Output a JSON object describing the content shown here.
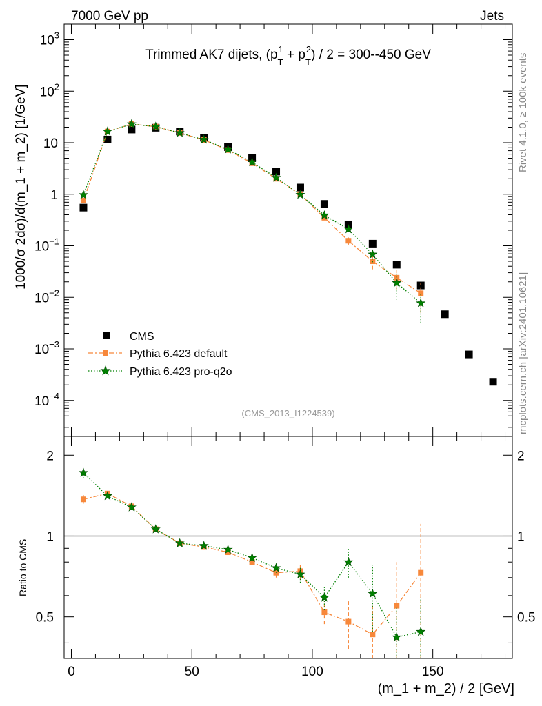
{
  "header": {
    "left": "7000 GeV pp",
    "right": "Jets"
  },
  "side_labels": {
    "rivet": "Rivet 4.1.0, ≥ 100k events",
    "mcplots": "mcplots.cern.ch [arXiv:2401.10621]"
  },
  "chart_data": [
    {
      "type": "scatter",
      "panel": "main",
      "title_parts": {
        "prefix": "Trimmed AK7 dijets, (p",
        "sub1": "T",
        "sup1": "1",
        "mid": " + p",
        "sub2": "T",
        "sup2": "2",
        "suffix": ") / 2 = 300--450 GeV"
      },
      "ylabel": "1000/σ  2dσ)/d(m_1 + m_2) [1/GeV]",
      "yscale": "log",
      "ylim": [
        2e-05,
        2000
      ],
      "xlim": [
        -3,
        183
      ],
      "y_tick_labels": [
        {
          "base": "10",
          "exp": "3",
          "value": 1000
        },
        {
          "base": "10",
          "exp": "2",
          "value": 100
        },
        {
          "base": "10",
          "exp": "",
          "value": 10
        },
        {
          "base": "1",
          "exp": "",
          "value": 1
        },
        {
          "base": "10",
          "exp": "−1",
          "value": 0.1
        },
        {
          "base": "10",
          "exp": "−2",
          "value": 0.01
        },
        {
          "base": "10",
          "exp": "−3",
          "value": 0.001
        },
        {
          "base": "10",
          "exp": "−4",
          "value": 0.0001
        }
      ],
      "watermark": "(CMS_2013_I1224539)",
      "legend": [
        "CMS",
        "Pythia 6.423 default",
        "Pythia 6.423 pro-q2o"
      ],
      "series": [
        {
          "name": "CMS",
          "color": "#000000",
          "style": "marker-square",
          "x": [
            5,
            15,
            25,
            35,
            45,
            55,
            65,
            75,
            85,
            95,
            105,
            115,
            125,
            135,
            145,
            155,
            165,
            175
          ],
          "values": [
            0.55,
            11.5,
            18,
            19.5,
            16.5,
            12.5,
            8.2,
            5.0,
            2.75,
            1.35,
            0.65,
            0.26,
            0.11,
            0.043,
            0.017,
            0.0047,
            0.00078,
            0.00023
          ],
          "err": [
            0,
            0,
            0,
            0,
            0,
            0,
            0,
            0,
            0,
            0,
            0,
            0,
            0,
            0,
            0,
            0,
            0,
            0
          ]
        },
        {
          "name": "Pythia 6.423 default",
          "color": "#f7883b",
          "style": "dashdot-square",
          "x": [
            5,
            15,
            25,
            35,
            45,
            55,
            65,
            75,
            85,
            95,
            105,
            115,
            125,
            135,
            145
          ],
          "values": [
            0.75,
            16.5,
            23,
            20.5,
            15.5,
            11.3,
            7.2,
            4.0,
            2.0,
            1.0,
            0.35,
            0.125,
            0.05,
            0.024,
            0.012
          ],
          "err": [
            0.05,
            0.3,
            0.3,
            0.3,
            0.2,
            0.15,
            0.1,
            0.06,
            0.05,
            0.04,
            0.03,
            0.02,
            0.015,
            0.01,
            0.007
          ]
        },
        {
          "name": "Pythia 6.423 pro-q2o",
          "color": "#008000",
          "style": "dotted-star",
          "x": [
            5,
            15,
            25,
            35,
            45,
            55,
            65,
            75,
            85,
            95,
            105,
            115,
            125,
            135,
            145
          ],
          "values": [
            0.97,
            16.5,
            23,
            20.5,
            15.5,
            11.5,
            7.4,
            4.2,
            2.1,
            0.98,
            0.39,
            0.21,
            0.068,
            0.019,
            0.0077
          ],
          "err": [
            0.05,
            0.3,
            0.3,
            0.3,
            0.2,
            0.15,
            0.1,
            0.06,
            0.05,
            0.04,
            0.03,
            0.025,
            0.02,
            0.01,
            0.0045
          ]
        }
      ]
    },
    {
      "type": "scatter",
      "panel": "ratio",
      "ylabel": "Ratio to CMS",
      "xlabel": "(m_1 + m_2) / 2 [GeV]",
      "yscale": "log",
      "ylim": [
        0.35,
        2.35
      ],
      "xlim": [
        -3,
        183
      ],
      "y_tick_labels": [
        {
          "text": "2",
          "value": 2
        },
        {
          "text": "1",
          "value": 1
        },
        {
          "text": "0.5",
          "value": 0.5
        }
      ],
      "x_tick_labels": [
        {
          "text": "0",
          "value": 0
        },
        {
          "text": "50",
          "value": 50
        },
        {
          "text": "100",
          "value": 100
        },
        {
          "text": "150",
          "value": 150
        }
      ],
      "reference_line": 1,
      "series": [
        {
          "name": "Pythia 6.423 default",
          "color": "#f7883b",
          "style": "dashdot-square",
          "x": [
            5,
            15,
            25,
            35,
            45,
            55,
            65,
            75,
            85,
            95,
            105,
            115,
            125,
            135,
            145
          ],
          "values": [
            1.37,
            1.44,
            1.29,
            1.06,
            0.94,
            0.91,
            0.87,
            0.8,
            0.73,
            0.74,
            0.52,
            0.48,
            0.43,
            0.55,
            0.73
          ],
          "err": [
            0.05,
            0.02,
            0.02,
            0.015,
            0.015,
            0.015,
            0.015,
            0.02,
            0.03,
            0.05,
            0.05,
            0.1,
            0.12,
            0.25,
            0.38
          ]
        },
        {
          "name": "Pythia 6.423 pro-q2o",
          "color": "#008000",
          "style": "dotted-star",
          "x": [
            5,
            15,
            25,
            35,
            45,
            55,
            65,
            75,
            85,
            95,
            105,
            115,
            125,
            135,
            145
          ],
          "values": [
            1.72,
            1.41,
            1.28,
            1.06,
            0.94,
            0.92,
            0.89,
            0.83,
            0.76,
            0.72,
            0.59,
            0.8,
            0.61,
            0.42,
            0.44
          ],
          "err": [
            0.08,
            0.02,
            0.02,
            0.015,
            0.015,
            0.015,
            0.015,
            0.02,
            0.03,
            0.05,
            0.06,
            0.1,
            0.17,
            0.12,
            0.15
          ]
        }
      ]
    }
  ]
}
